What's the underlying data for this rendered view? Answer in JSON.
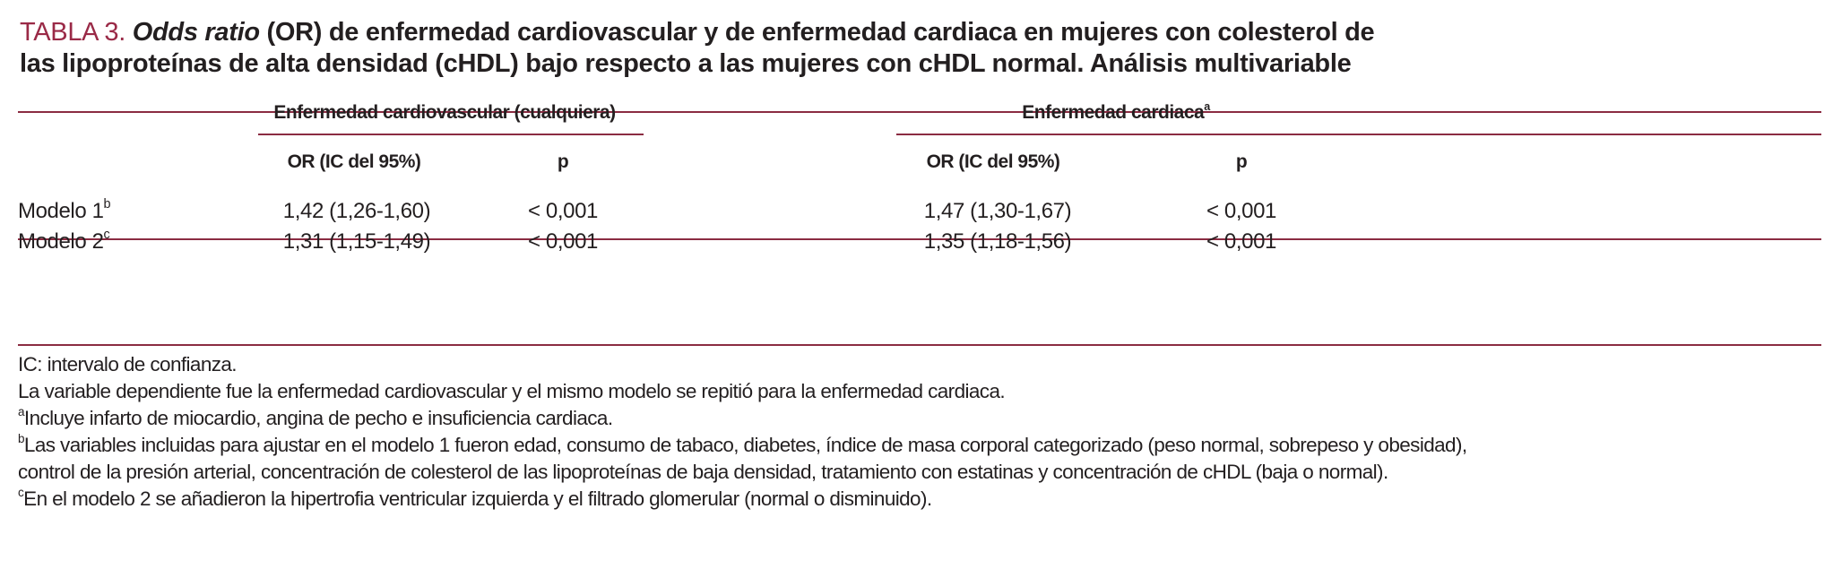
{
  "title": {
    "label": "TABLA 3.",
    "italic": "Odds ratio",
    "line1_rest": " (OR) de enfermedad cardiovascular y de enfermedad cardiaca en mujeres con colesterol de",
    "line2": "las lipoproteínas de alta densidad (cHDL) bajo respecto a las mujeres con cHDL normal. Análisis multivariable"
  },
  "table": {
    "groups": [
      {
        "label": "Enfermedad cardiovascular (cualquiera)",
        "sup": ""
      },
      {
        "label": "Enfermedad cardiaca",
        "sup": "a"
      }
    ],
    "subheaders": [
      "OR (IC del 95%)",
      "p",
      "OR (IC del 95%)",
      "p"
    ],
    "rows": [
      {
        "label": "Modelo 1",
        "sup": "b",
        "cells": [
          "1,42 (1,26-1,60)",
          "< 0,001",
          "1,47 (1,30-1,67)",
          "< 0,001"
        ]
      },
      {
        "label": "Modelo 2",
        "sup": "c",
        "cells": [
          "1,31 (1,15-1,49)",
          "< 0,001",
          "1,35 (1,18-1,56)",
          "< 0,001"
        ]
      }
    ]
  },
  "footnotes": [
    {
      "sup": "",
      "text": "IC: intervalo de confianza."
    },
    {
      "sup": "",
      "text": "La variable dependiente fue la enfermedad cardiovascular y el mismo modelo se repitió para la enfermedad cardiaca."
    },
    {
      "sup": "a",
      "text": "Incluye infarto de miocardio, angina de pecho e insuficiencia cardiaca."
    },
    {
      "sup": "b",
      "text": "Las variables incluidas para ajustar en el modelo 1 fueron edad, consumo de tabaco, diabetes, índice de masa corporal categorizado (peso normal, sobrepeso y obesidad),"
    },
    {
      "sup": "",
      "text": "control de la presión arterial, concentración de colesterol de las lipoproteínas de baja densidad, tratamiento con estatinas y concentración de cHDL (baja o normal)."
    },
    {
      "sup": "c",
      "text": "En el modelo 2 se añadieron la hipertrofia ventricular izquierda y el filtrado glomerular (normal o disminuido)."
    }
  ],
  "colors": {
    "accent": "#9a2a47",
    "rule": "#8b2c42",
    "text": "#231f20"
  }
}
